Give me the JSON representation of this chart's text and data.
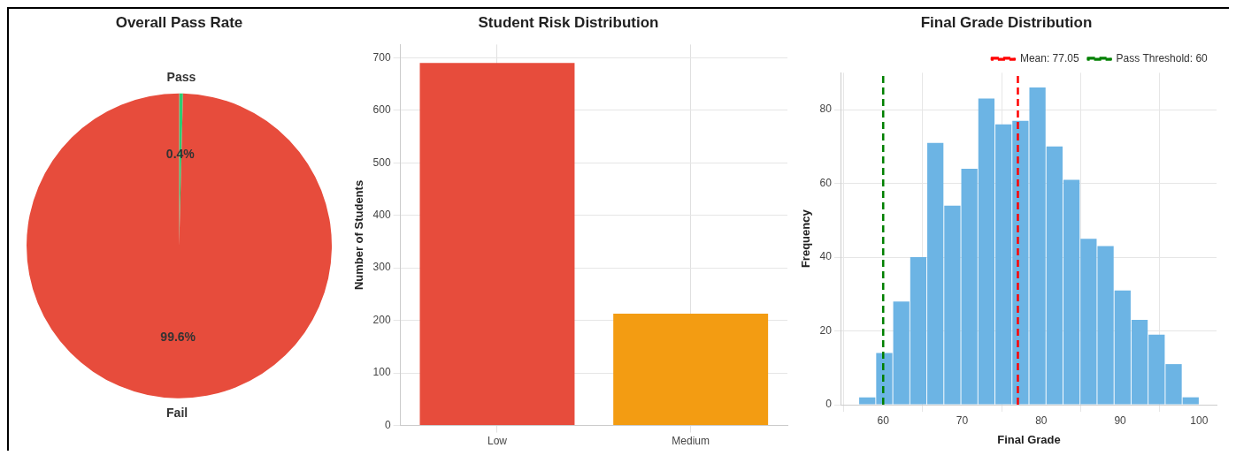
{
  "chart_data": [
    {
      "type": "pie",
      "title": "Overall Pass Rate",
      "categories": [
        "Pass",
        "Fail"
      ],
      "values": [
        0.4,
        99.6
      ],
      "colors": [
        "#2ecc71",
        "#e74c3c"
      ],
      "value_labels": [
        "0.4%",
        "99.6%"
      ]
    },
    {
      "type": "bar",
      "title": "Student Risk Distribution",
      "ylabel": "Number of Students",
      "categories": [
        "Low",
        "Medium"
      ],
      "values": [
        690,
        213
      ],
      "colors": [
        "#e74c3c",
        "#f39c12"
      ],
      "ylim": [
        0,
        725
      ],
      "yticks": [
        0,
        100,
        200,
        300,
        400,
        500,
        600,
        700
      ],
      "grid": true
    },
    {
      "type": "histogram",
      "title": "Final Grade Distribution",
      "xlabel": "Final Grade",
      "ylabel": "Frequency",
      "color": "#6cb4e4",
      "bins": [
        56.9,
        59.06,
        61.21,
        63.37,
        65.52,
        67.68,
        69.83,
        71.99,
        74.14,
        76.3,
        78.45,
        80.61,
        82.76,
        84.92,
        87.07,
        89.23,
        91.38,
        93.54,
        95.69,
        97.85,
        100
      ],
      "values": [
        2,
        14,
        28,
        40,
        71,
        54,
        64,
        83,
        76,
        77,
        86,
        70,
        61,
        45,
        43,
        31,
        23,
        19,
        11,
        2
      ],
      "xlim": [
        54.7,
        102.2
      ],
      "xticks": [
        60,
        70,
        80,
        90,
        100
      ],
      "ylim": [
        0,
        90
      ],
      "yticks": [
        0,
        20,
        40,
        60,
        80
      ],
      "grid": true,
      "legend": "top right",
      "ref_lines": [
        {
          "axis": "x",
          "value": 77.05,
          "label": "Mean: 77.05",
          "color": "#ff0000",
          "line_style": "dashed"
        },
        {
          "axis": "x",
          "value": 60,
          "label": "Pass Threshold: 60",
          "color": "#008000",
          "line_style": "dashed"
        }
      ]
    }
  ]
}
